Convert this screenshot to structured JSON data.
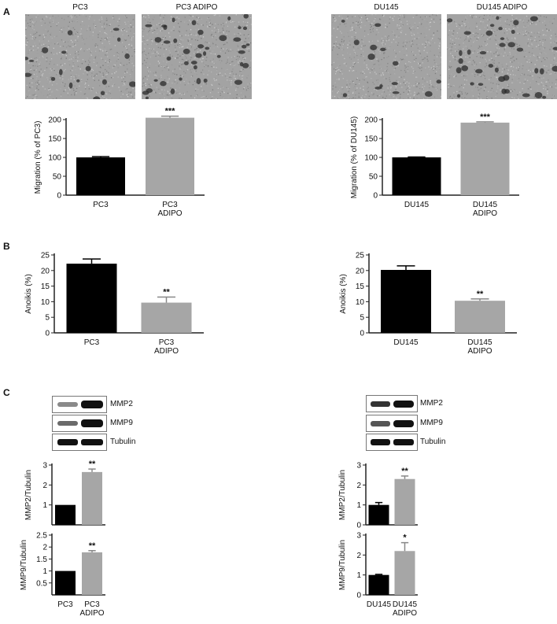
{
  "panels": {
    "A": "A",
    "B": "B",
    "C": "C"
  },
  "images": {
    "pc3": "PC3",
    "pc3_adipo": "PC3  ADIPO",
    "du145": "DU145",
    "du145_adipo": "DU145  ADIPO"
  },
  "blots": {
    "left": [
      "MMP2",
      "MMP9",
      "Tubulin"
    ],
    "right": [
      "MMP2",
      "MMP9",
      "Tubulin"
    ]
  },
  "colors": {
    "control": "#000000",
    "adipo": "#a6a6a6",
    "axis": "#222222"
  },
  "chart_data": [
    {
      "id": "migration-pc3",
      "type": "bar",
      "categories": [
        "PC3",
        "PC3\nADIPO"
      ],
      "values": [
        100,
        205
      ],
      "errors": [
        2,
        4
      ],
      "significance": [
        "",
        "***"
      ],
      "ylabel": "Migration (% of PC3)",
      "ylim": [
        0,
        200
      ],
      "yticks": [
        0,
        50,
        100,
        150,
        200
      ]
    },
    {
      "id": "migration-du145",
      "type": "bar",
      "categories": [
        "DU145",
        "DU145\nADIPO"
      ],
      "values": [
        100,
        192
      ],
      "errors": [
        1,
        2
      ],
      "significance": [
        "",
        "***"
      ],
      "ylabel": "Migration (% of DU145)",
      "ylim": [
        0,
        200
      ],
      "yticks": [
        0,
        50,
        100,
        150,
        200
      ]
    },
    {
      "id": "anoikis-pc3",
      "type": "bar",
      "categories": [
        "PC3",
        "PC3\nADIPO"
      ],
      "values": [
        22.2,
        9.7
      ],
      "errors": [
        1.5,
        1.8
      ],
      "significance": [
        "",
        "**"
      ],
      "ylabel": "Anoikis (%)",
      "ylim": [
        0,
        25
      ],
      "yticks": [
        0,
        5,
        10,
        15,
        20,
        25
      ]
    },
    {
      "id": "anoikis-du145",
      "type": "bar",
      "categories": [
        "DU145",
        "DU145\nADIPO"
      ],
      "values": [
        20.2,
        10.3
      ],
      "errors": [
        1.3,
        0.6
      ],
      "significance": [
        "",
        "**"
      ],
      "ylabel": "Anoikis (%)",
      "ylim": [
        0,
        25
      ],
      "yticks": [
        0,
        5,
        10,
        15,
        20,
        25
      ]
    },
    {
      "id": "mmp2-pc3",
      "type": "bar",
      "categories": [
        "",
        ""
      ],
      "values": [
        1.0,
        2.65
      ],
      "errors": [
        0,
        0.15
      ],
      "significance": [
        "",
        "**"
      ],
      "ylabel": "MMP2/Tubulin",
      "ylim": [
        0,
        3
      ],
      "yticks": [
        1,
        2,
        3
      ]
    },
    {
      "id": "mmp2-du145",
      "type": "bar",
      "categories": [
        "",
        ""
      ],
      "values": [
        1.0,
        2.3
      ],
      "errors": [
        0.12,
        0.15
      ],
      "significance": [
        "",
        "**"
      ],
      "ylabel": "MMP2/Tubulin",
      "ylim": [
        0,
        3
      ],
      "yticks": [
        0,
        1,
        2,
        3
      ]
    },
    {
      "id": "mmp9-pc3",
      "type": "bar",
      "categories": [
        "PC3",
        "PC3\nADIPO"
      ],
      "values": [
        1.0,
        1.78
      ],
      "errors": [
        0,
        0.07
      ],
      "significance": [
        "",
        "**"
      ],
      "ylabel": "MMP9/Tubulin",
      "ylim": [
        0,
        2.5
      ],
      "yticks": [
        0.5,
        1,
        1.5,
        2,
        2.5
      ]
    },
    {
      "id": "mmp9-du145",
      "type": "bar",
      "categories": [
        "DU145",
        "DU145\nADIPO"
      ],
      "values": [
        1.0,
        2.2
      ],
      "errors": [
        0.03,
        0.42
      ],
      "significance": [
        "",
        "*"
      ],
      "ylabel": "MMP9/Tubulin",
      "ylim": [
        0,
        3
      ],
      "yticks": [
        0,
        1,
        2,
        3
      ]
    }
  ]
}
